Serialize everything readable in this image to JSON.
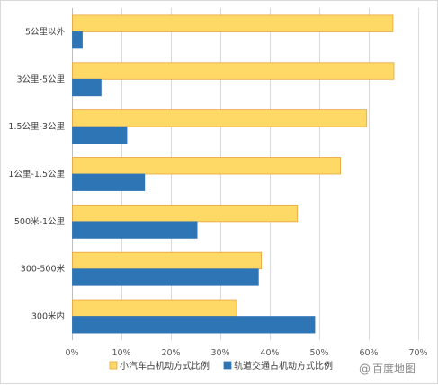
{
  "chart_data": {
    "type": "bar",
    "orientation": "horizontal",
    "categories": [
      "5公里以外",
      "3公里-5公里",
      "1.5公里-3公里",
      "1公里-1.5公里",
      "500米-1公里",
      "300-500米",
      "300米内"
    ],
    "series": [
      {
        "name": "小汽车占机动方式比例",
        "color": "#FFD966",
        "stroke": "#E8A33A",
        "values": [
          64.8,
          65.0,
          59.5,
          54.2,
          45.5,
          38.2,
          33.2
        ]
      },
      {
        "name": "轨道交通占机动方式比例",
        "color": "#2E75B6",
        "stroke": "#2E75B6",
        "values": [
          2.0,
          5.8,
          11.0,
          14.6,
          25.2,
          37.6,
          49.0
        ]
      }
    ],
    "xlim": [
      0,
      70
    ],
    "xticks": [
      "0%",
      "10%",
      "20%",
      "30%",
      "40%",
      "50%",
      "60%",
      "70%"
    ],
    "xtick_values": [
      0,
      10,
      20,
      30,
      40,
      50,
      60,
      70
    ],
    "grid": true,
    "legend_position": "bottom",
    "title": "",
    "xlabel": "",
    "ylabel": ""
  },
  "watermark": {
    "icon": "at-sign-icon",
    "text": "百度地图"
  }
}
